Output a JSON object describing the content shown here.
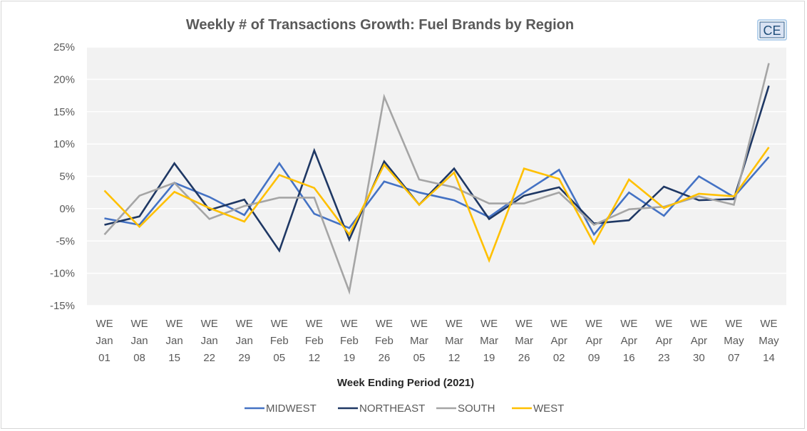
{
  "chart_data": {
    "type": "line",
    "title": "Weekly # of Transactions Growth: Fuel Brands by Region",
    "logo": "CE",
    "xlabel": "Week Ending Period (2021)",
    "ylabel": "",
    "ylim": [
      -15,
      25
    ],
    "yticks": [
      "25%",
      "20%",
      "15%",
      "10%",
      "5%",
      "0%",
      "-5%",
      "-10%",
      "-15%"
    ],
    "ytick_values": [
      25,
      20,
      15,
      10,
      5,
      0,
      -5,
      -10,
      -15
    ],
    "grid": true,
    "legend_position": "bottom",
    "categories": [
      [
        "WE",
        "Jan",
        "01"
      ],
      [
        "WE",
        "Jan",
        "08"
      ],
      [
        "WE",
        "Jan",
        "15"
      ],
      [
        "WE",
        "Jan",
        "22"
      ],
      [
        "WE",
        "Jan",
        "29"
      ],
      [
        "WE",
        "Feb",
        "05"
      ],
      [
        "WE",
        "Feb",
        "12"
      ],
      [
        "WE",
        "Feb",
        "19"
      ],
      [
        "WE",
        "Feb",
        "26"
      ],
      [
        "WE",
        "Mar",
        "05"
      ],
      [
        "WE",
        "Mar",
        "12"
      ],
      [
        "WE",
        "Mar",
        "19"
      ],
      [
        "WE",
        "Mar",
        "26"
      ],
      [
        "WE",
        "Apr",
        "02"
      ],
      [
        "WE",
        "Apr",
        "09"
      ],
      [
        "WE",
        "Apr",
        "16"
      ],
      [
        "WE",
        "Apr",
        "23"
      ],
      [
        "WE",
        "Apr",
        "30"
      ],
      [
        "WE",
        "May",
        "07"
      ],
      [
        "WE",
        "May",
        "14"
      ]
    ],
    "series": [
      {
        "name": "MIDWEST",
        "color": "#4472c4",
        "values": [
          -1.5,
          -2.5,
          4.0,
          1.8,
          -1.0,
          7.0,
          -0.8,
          -3.0,
          4.2,
          2.5,
          1.3,
          -1.3,
          2.5,
          6.0,
          -4.0,
          2.5,
          -1.1,
          5.0,
          1.8,
          8.0
        ]
      },
      {
        "name": "NORTHEAST",
        "color": "#1f3864",
        "values": [
          -2.5,
          -1.2,
          7.0,
          -0.2,
          1.4,
          -6.5,
          9.0,
          -4.8,
          7.3,
          0.6,
          6.2,
          -1.6,
          2.0,
          3.3,
          -2.3,
          -1.8,
          3.4,
          1.3,
          1.5,
          19.0
        ]
      },
      {
        "name": "SOUTH",
        "color": "#a5a5a5",
        "values": [
          -4.0,
          2.0,
          4.0,
          -1.6,
          0.4,
          1.7,
          1.7,
          -12.8,
          17.3,
          4.5,
          3.3,
          0.8,
          0.8,
          2.5,
          -2.5,
          -0.1,
          0.3,
          1.9,
          0.6,
          22.5
        ]
      },
      {
        "name": "WEST",
        "color": "#ffc000",
        "values": [
          2.8,
          -2.8,
          2.6,
          0.1,
          -2.0,
          5.2,
          3.2,
          -4.0,
          6.8,
          0.6,
          5.6,
          -8.0,
          6.2,
          4.6,
          -5.4,
          4.5,
          0.1,
          2.3,
          1.9,
          9.5
        ]
      }
    ]
  }
}
